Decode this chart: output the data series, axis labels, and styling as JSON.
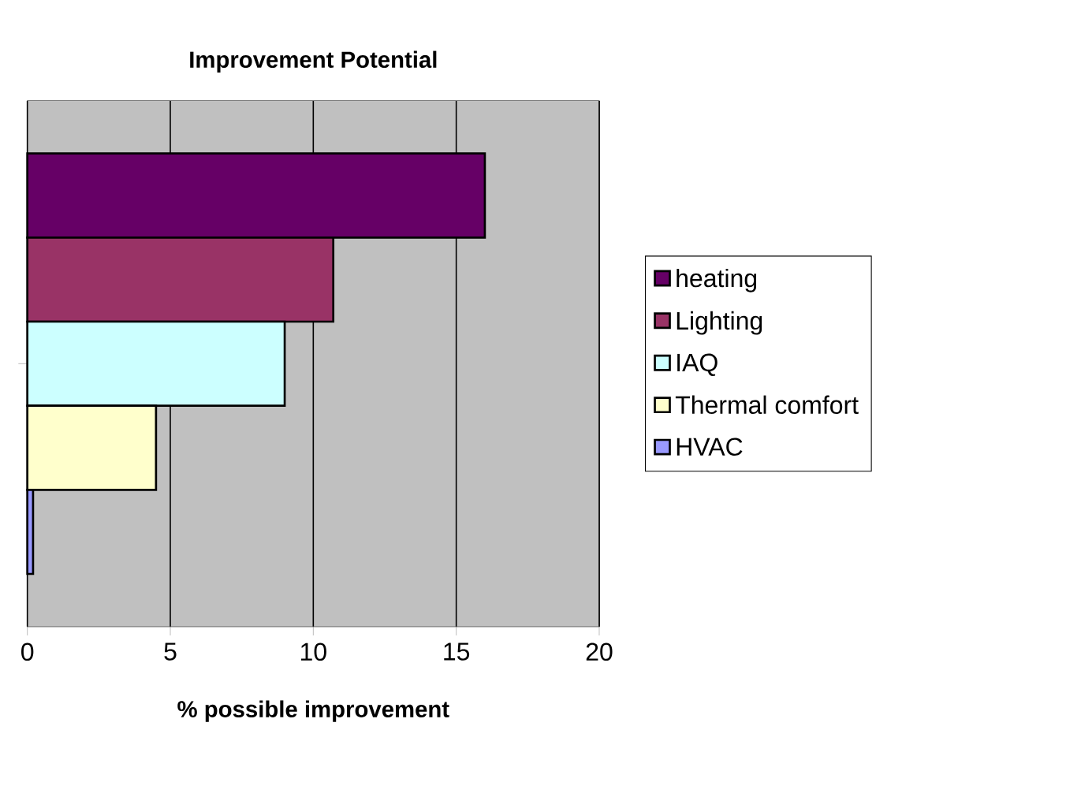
{
  "chart_data": {
    "type": "bar",
    "orientation": "horizontal",
    "title": "Improvement Potential",
    "xlabel": "% possible improvement",
    "categories": [
      null
    ],
    "series": [
      {
        "name": "heating",
        "color": "#660066",
        "values": [
          16
        ]
      },
      {
        "name": "Lighting",
        "color": "#993366",
        "values": [
          10.7
        ]
      },
      {
        "name": "IAQ",
        "color": "#ccffff",
        "values": [
          9
        ]
      },
      {
        "name": "Thermal comfort",
        "color": "#ffffcc",
        "values": [
          4.5
        ]
      },
      {
        "name": "HVAC",
        "color": "#9999ff",
        "values": [
          0.2
        ]
      }
    ],
    "xlim": [
      0,
      20
    ],
    "xticks": [
      0,
      5,
      10,
      15,
      20
    ],
    "grid": "x",
    "legend": "right",
    "tick_labels": "x"
  }
}
